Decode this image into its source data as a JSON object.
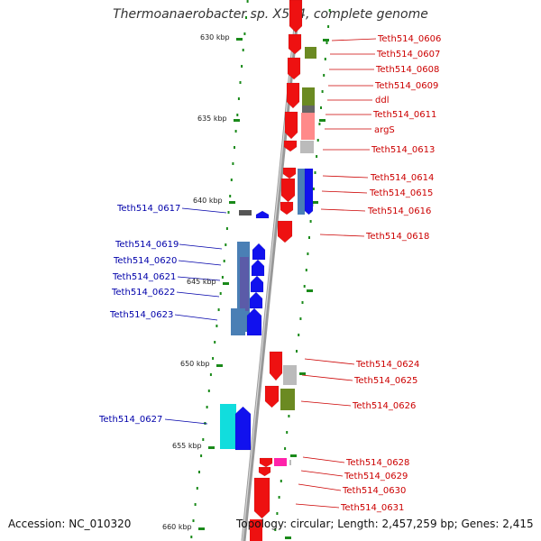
{
  "title": "Thermoanaerobacter sp. X514, complete genome",
  "accession": "Accession: NC_010320",
  "summary": "Topology: circular; Length: 2,457,259 bp; Genes: 2,415",
  "scale_labels": [
    "630 kbp",
    "635 kbp",
    "640 kbp",
    "645 kbp",
    "650 kbp",
    "655 kbp",
    "660 kbp"
  ],
  "colors": {
    "forward": "#ee1111",
    "reverse": "#1111ee",
    "backbone": "#888888",
    "tick": "#1a8a1a",
    "label_forward": "#cc0000",
    "label_reverse": "#0000aa",
    "olive": "#6b8a22",
    "cyan": "#11dddd",
    "pink": "#ff22aa",
    "steel": "#4a7fb5",
    "grey": "#bbbbbb"
  },
  "forward_labels": [
    "Teth514_0606",
    "Teth514_0607",
    "Teth514_0608",
    "Teth514_0609",
    "ddl",
    "Teth514_0611",
    "argS",
    "Teth514_0613",
    "Teth514_0614",
    "Teth514_0615",
    "Teth514_0616",
    "Teth514_0618",
    "Teth514_0624",
    "Teth514_0625",
    "Teth514_0626",
    "Teth514_0628",
    "Teth514_0629",
    "Teth514_0630",
    "Teth514_0631"
  ],
  "reverse_labels": [
    "Teth514_0617",
    "Teth514_0619",
    "Teth514_0620",
    "Teth514_0621",
    "Teth514_0622",
    "Teth514_0623",
    "Teth514_0627"
  ]
}
